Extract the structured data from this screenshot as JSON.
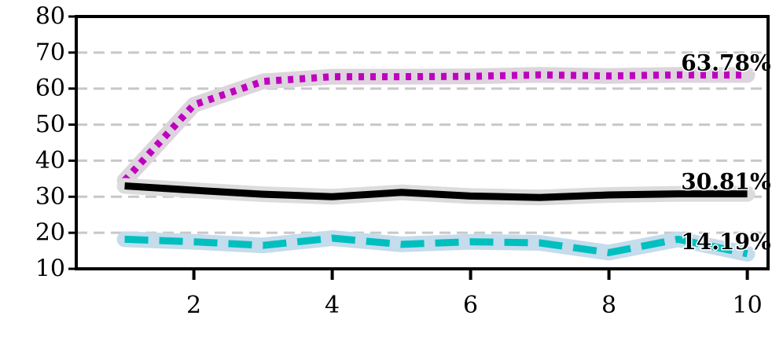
{
  "chart_data": {
    "type": "line",
    "title": "",
    "xlabel": "",
    "ylabel": "",
    "xlim": [
      0.3,
      10.3
    ],
    "ylim": [
      10,
      80
    ],
    "x_ticks": [
      2,
      4,
      6,
      8,
      10
    ],
    "x_tick_labels": [
      "2",
      "4",
      "6",
      "8",
      "10"
    ],
    "y_ticks": [
      10,
      20,
      30,
      40,
      50,
      60,
      70,
      80
    ],
    "y_tick_labels": [
      "10",
      "20",
      "30",
      "40",
      "50",
      "60",
      "70",
      "80"
    ],
    "grid": "horizontal dashed",
    "x": [
      1,
      2,
      3,
      4,
      5,
      6,
      7,
      8,
      9,
      10
    ],
    "series": [
      {
        "values": [
          34.5,
          55.5,
          62,
          63.3,
          63.3,
          63.4,
          63.8,
          63.5,
          63.8,
          63.78
        ],
        "color": "#bf00bf",
        "band_color": "#ddd4dd",
        "dash": "dotted",
        "end_label": "63.78%"
      },
      {
        "values": [
          33,
          31.8,
          30.7,
          30,
          31.2,
          30.2,
          29.8,
          30.5,
          30.8,
          30.81
        ],
        "color": "#000000",
        "band_color": "#dcdcdc",
        "dash": "solid",
        "end_label": "30.81%"
      },
      {
        "values": [
          18.2,
          17.5,
          16.5,
          18.5,
          16.8,
          17.5,
          17.2,
          14.5,
          18.2,
          14.19
        ],
        "color": "#00bfbf",
        "band_color": "#c4dcec",
        "dash": "dashed",
        "end_label": "14.19%"
      }
    ]
  }
}
